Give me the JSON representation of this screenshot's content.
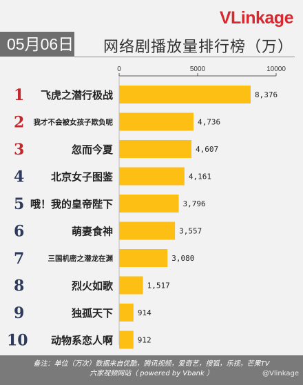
{
  "brand": {
    "logo_v": "V",
    "logo_rest": "Linkage"
  },
  "date": "05月06日",
  "chart_data": {
    "type": "bar",
    "orientation": "horizontal",
    "title": "网络剧播放量排行榜（万）",
    "categories": [
      "飞虎之潜行极战",
      "我才不会被女孩子欺负呢",
      "忽而今夏",
      "北京女子图鉴",
      "哦！我的皇帝陛下",
      "萌妻食神",
      "三国机密之潜龙在渊",
      "烈火如歌",
      "独孤天下",
      "动物系恋人啊"
    ],
    "values": [
      8376,
      4736,
      4607,
      4161,
      3796,
      3557,
      3080,
      1517,
      914,
      912
    ],
    "value_labels": [
      "8,376",
      "4,736",
      "4,607",
      "4,161",
      "3,796",
      "3,557",
      "3,080",
      "1,517",
      "914",
      "912"
    ],
    "ranks": [
      "1",
      "2",
      "3",
      "4",
      "5",
      "6",
      "7",
      "8",
      "9",
      "10"
    ],
    "xlim": [
      0,
      10000
    ],
    "ticks": [
      0,
      5000,
      10000
    ],
    "tick_labels": [
      "0",
      "5000",
      "10000"
    ],
    "bar_color": "#fdbf13",
    "rank_colors": {
      "top3": "#c1272d",
      "rest": "#2e3a5c"
    },
    "grid": false
  },
  "footer": {
    "line1": "备注：单位（万次）数据来自优酷，腾讯视频，爱奇艺，搜狐，乐视，芒果TV",
    "line2": "六家视频网站（ powered by Vbank ）",
    "watermark": "@Vlinkage"
  }
}
